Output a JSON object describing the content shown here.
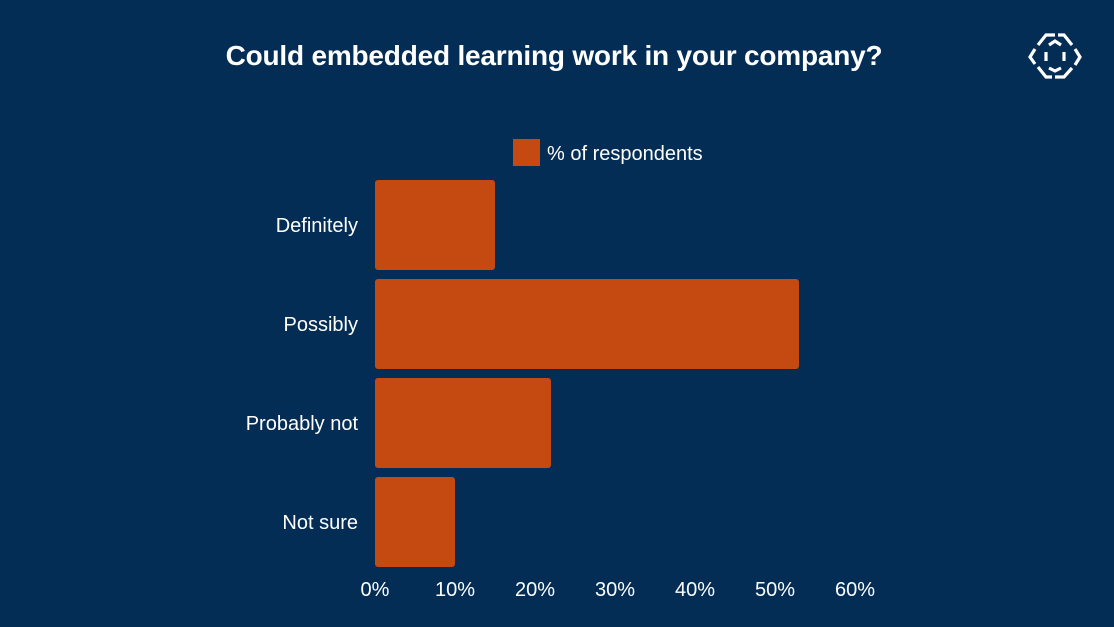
{
  "colors": {
    "background": "#032d55",
    "bar": "#c44a12",
    "text": "#ffffff"
  },
  "logo_icon": "hexagon-arrows-logo-icon",
  "chart_data": {
    "type": "bar",
    "orientation": "horizontal",
    "title": "Could embedded learning work in your company?",
    "categories": [
      "Definitely",
      "Possibly",
      "Probably not",
      "Not sure"
    ],
    "series": [
      {
        "name": "% of respondents",
        "values": [
          15,
          53,
          22,
          10
        ]
      }
    ],
    "xlim": [
      0,
      60
    ],
    "xticks": [
      "0%",
      "10%",
      "20%",
      "30%",
      "40%",
      "50%",
      "60%"
    ],
    "legend_position": "top",
    "grid": false
  }
}
